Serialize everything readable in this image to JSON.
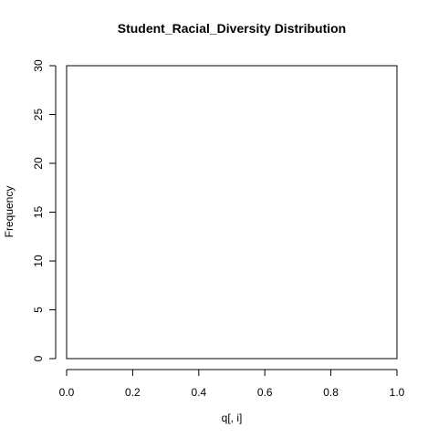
{
  "chart_data": {
    "type": "bar",
    "title": "Student_Racial_Diversity Distribution",
    "xlabel": "q[, i]",
    "ylabel": "Frequency",
    "xlim": [
      0,
      1
    ],
    "ylim": [
      0,
      30
    ],
    "x_ticks": [
      "0.0",
      "0.2",
      "0.4",
      "0.6",
      "0.8",
      "1.0"
    ],
    "y_ticks": [
      "0",
      "5",
      "10",
      "15",
      "20",
      "25",
      "30"
    ],
    "bins": [],
    "grid": false,
    "legend": "none",
    "colors": {
      "axis": "#000000",
      "background": "#ffffff"
    }
  }
}
